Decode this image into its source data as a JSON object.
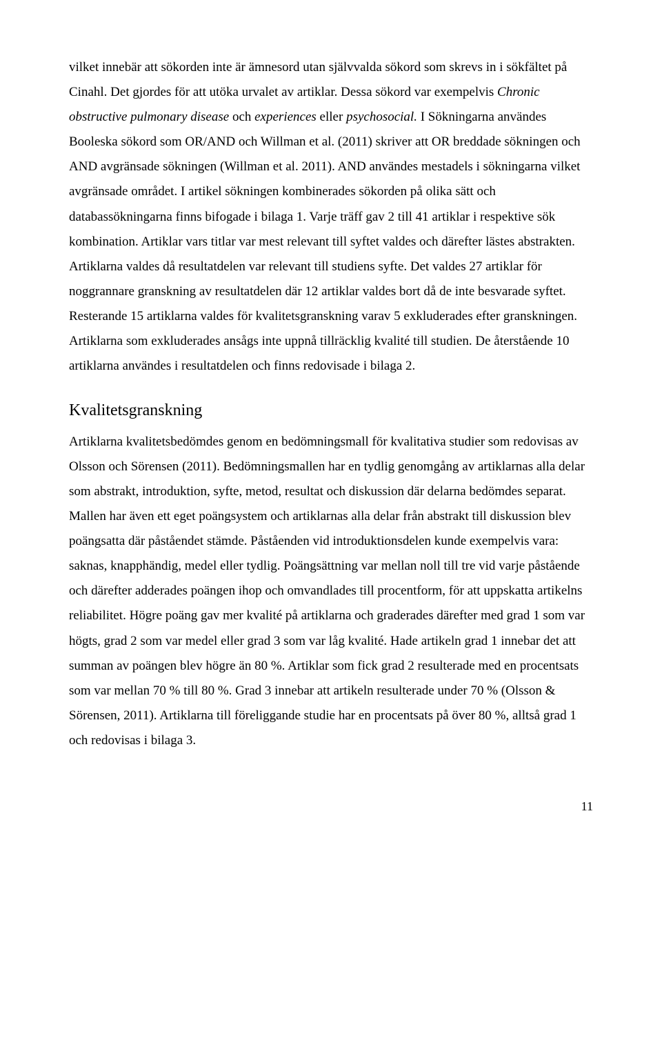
{
  "para1": {
    "seg1": "vilket innebär att sökorden inte är ämnesord utan självvalda sökord som skrevs in i sökfältet på Cinahl. Det gjordes för att utöka urvalet av artiklar. Dessa sökord var exempelvis ",
    "italic1": "Chronic obstructive pulmonary disease",
    "seg2": " och ",
    "italic2": "experiences",
    "seg3": " eller ",
    "italic3": "psychosocial.",
    "seg4": " I Sökningarna användes Booleska sökord som OR/AND och Willman et al. (2011) skriver att OR breddade sökningen och AND avgränsade sökningen (Willman et al. 2011). AND användes mestadels i sökningarna vilket avgränsade området. I artikel sökningen kombinerades sökorden på olika sätt och databassökningarna finns bifogade i bilaga 1. Varje träff gav 2 till 41 artiklar i respektive sök kombination. Artiklar vars titlar var mest relevant till syftet valdes och därefter lästes abstrakten. Artiklarna valdes då resultatdelen var relevant till studiens syfte. Det valdes 27 artiklar för noggrannare granskning av resultatdelen där 12 artiklar valdes bort då de inte besvarade syftet. Resterande 15 artiklarna valdes för kvalitetsgranskning varav 5 exkluderades efter granskningen. Artiklarna som exkluderades ansågs inte uppnå tillräcklig kvalité till studien. De återstående 10 artiklarna användes i resultatdelen och finns redovisade i bilaga 2."
  },
  "heading1": "Kvalitetsgranskning",
  "para2": "Artiklarna kvalitetsbedömdes genom en bedömningsmall för kvalitativa studier som redovisas av Olsson och Sörensen (2011). Bedömningsmallen har en tydlig genomgång av artiklarnas alla delar som abstrakt, introduktion, syfte, metod, resultat och diskussion där delarna bedömdes separat. Mallen har även ett eget poängsystem och artiklarnas alla delar från abstrakt till diskussion blev poängsatta där påståendet stämde. Påståenden vid introduktionsdelen kunde exempelvis vara: saknas, knapphändig, medel eller tydlig. Poängsättning var mellan noll till tre vid varje påstående och därefter adderades poängen ihop och omvandlades till procentform, för att uppskatta artikelns reliabilitet. Högre poäng gav mer kvalité på artiklarna och graderades därefter med grad 1 som var högts, grad 2 som var medel eller grad 3 som var låg kvalité. Hade artikeln grad 1 innebar det att summan av poängen blev högre än 80 %. Artiklar som fick grad 2 resulterade med en procentsats som var mellan 70 % till 80 %. Grad 3 innebar att artikeln resulterade under 70 % (Olsson & Sörensen, 2011). Artiklarna till föreliggande studie har en procentsats på över 80 %, alltså grad 1 och redovisas i bilaga 3.",
  "pagenum": "11"
}
